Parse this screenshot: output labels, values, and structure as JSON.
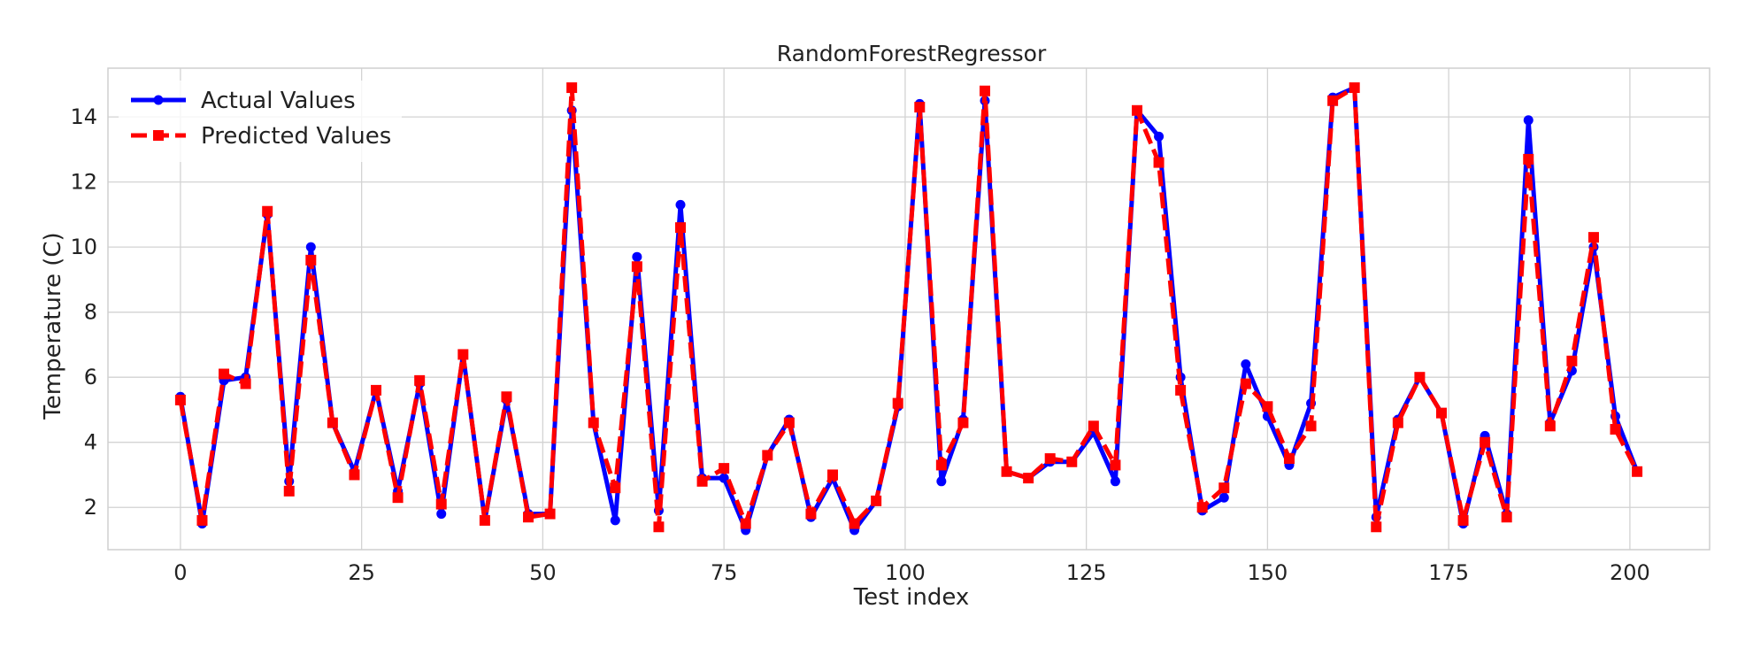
{
  "chart_data": {
    "type": "line",
    "title": "RandomForestRegressor",
    "xlabel": "Test index",
    "ylabel": "Temperature (C)",
    "xlim": [
      -10,
      211
    ],
    "ylim": [
      0.7,
      15.5
    ],
    "xticks": [
      0,
      25,
      50,
      75,
      100,
      125,
      150,
      175,
      200
    ],
    "yticks": [
      2,
      4,
      6,
      8,
      10,
      12,
      14
    ],
    "grid": true,
    "legend_position": "top-left",
    "x": [
      0,
      3,
      6,
      9,
      12,
      15,
      18,
      21,
      24,
      27,
      30,
      33,
      36,
      39,
      42,
      45,
      48,
      51,
      54,
      57,
      60,
      63,
      66,
      69,
      72,
      75,
      78,
      81,
      84,
      87,
      90,
      93,
      96,
      99,
      102,
      105,
      108,
      111,
      114,
      117,
      120,
      123,
      126,
      129,
      132,
      135,
      138,
      141,
      144,
      147,
      150,
      153,
      156,
      159,
      162,
      165,
      168,
      171,
      174,
      177,
      180,
      183,
      186,
      189,
      192,
      195,
      198,
      201
    ],
    "series": [
      {
        "name": "Actual Values",
        "color": "#0000ff",
        "style": "solid",
        "marker": "circle",
        "values": [
          5.4,
          1.5,
          5.9,
          6.0,
          11.0,
          2.8,
          10.0,
          4.6,
          3.1,
          5.6,
          2.5,
          5.8,
          1.8,
          6.7,
          1.6,
          5.3,
          1.8,
          1.8,
          14.2,
          4.6,
          1.6,
          9.7,
          1.9,
          11.3,
          2.9,
          2.9,
          1.3,
          3.6,
          4.7,
          1.7,
          2.9,
          1.3,
          2.2,
          5.1,
          14.4,
          2.8,
          4.7,
          14.5,
          3.1,
          2.9,
          3.4,
          3.4,
          4.3,
          2.8,
          14.2,
          13.4,
          6.0,
          1.9,
          2.3,
          6.4,
          4.8,
          3.3,
          5.2,
          14.6,
          14.9,
          1.7,
          4.7,
          6.0,
          4.9,
          1.5,
          4.2,
          1.8,
          13.9,
          4.6,
          6.2,
          10.0,
          4.8,
          3.1
        ]
      },
      {
        "name": "Predicted Values",
        "color": "#ff0000",
        "style": "dashed",
        "marker": "square",
        "values": [
          5.3,
          1.6,
          6.1,
          5.8,
          11.1,
          2.5,
          9.6,
          4.6,
          3.0,
          5.6,
          2.3,
          5.9,
          2.1,
          6.7,
          1.6,
          5.4,
          1.7,
          1.8,
          14.9,
          4.6,
          2.6,
          9.4,
          1.4,
          10.6,
          2.8,
          3.2,
          1.5,
          3.6,
          4.6,
          1.8,
          3.0,
          1.5,
          2.2,
          5.2,
          14.3,
          3.3,
          4.6,
          14.8,
          3.1,
          2.9,
          3.5,
          3.4,
          4.5,
          3.3,
          14.2,
          12.6,
          5.6,
          2.0,
          2.6,
          5.8,
          5.1,
          3.5,
          4.5,
          14.5,
          14.9,
          1.4,
          4.6,
          6.0,
          4.9,
          1.6,
          4.0,
          1.7,
          12.7,
          4.5,
          6.5,
          10.3,
          4.4,
          3.1
        ]
      }
    ]
  }
}
